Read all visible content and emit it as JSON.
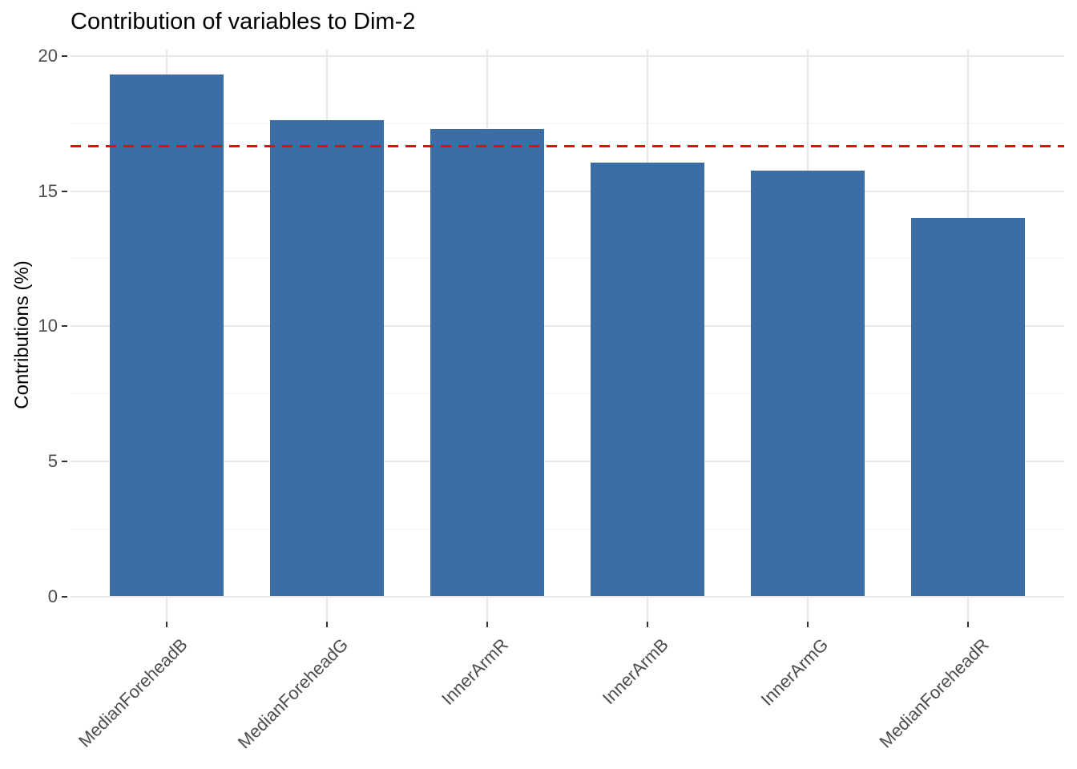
{
  "chart_data": {
    "type": "bar",
    "title": "Contribution of variables to Dim-2",
    "ylabel": "Contributions (%)",
    "xlabel": "",
    "categories": [
      "MedianForeheadB",
      "MedianForeheadG",
      "InnerArmR",
      "InnerArmB",
      "InnerArmG",
      "MedianForeheadR"
    ],
    "values": [
      19.32,
      17.64,
      17.3,
      16.06,
      15.75,
      14.02
    ],
    "reference_line": 16.67,
    "y_major_ticks": [
      0,
      5,
      10,
      15,
      20
    ],
    "y_major_tick_labels": [
      "0",
      "5",
      "10",
      "15",
      "20"
    ],
    "y_minor_ticks": [
      2.5,
      7.5,
      12.5,
      17.5
    ],
    "ylim": [
      -0.97,
      20.32
    ],
    "grid": "on",
    "legend": "none",
    "x_label_angle_deg": 45,
    "colors": {
      "bar_fill": "#3b6da7",
      "reference_line": "#ff0000",
      "grid_major": "#e7e7e7",
      "grid_minor": "#f1f1f1",
      "tick_mark": "#333333",
      "tick_label": "#4d4d4d",
      "title": "#000000",
      "background": "#ffffff"
    },
    "reference_line_style": "dashed"
  }
}
